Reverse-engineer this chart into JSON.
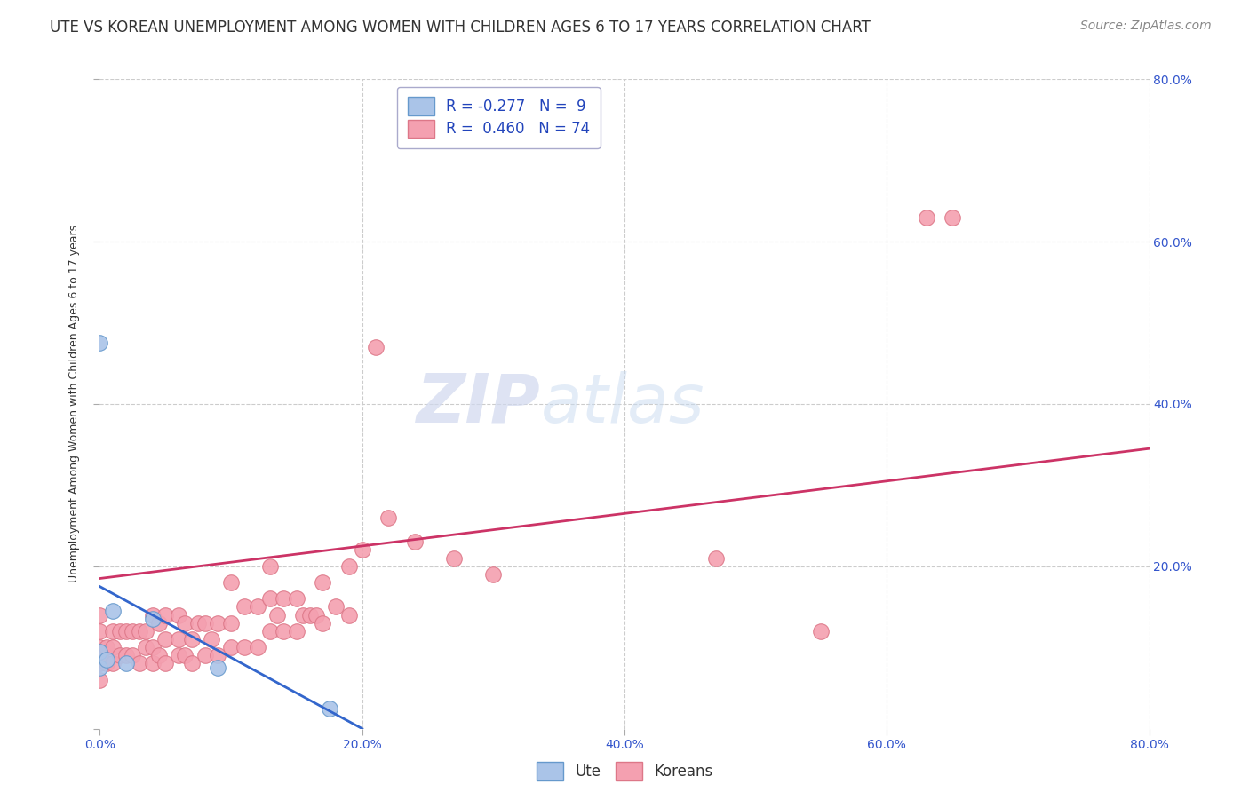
{
  "title": "UTE VS KOREAN UNEMPLOYMENT AMONG WOMEN WITH CHILDREN AGES 6 TO 17 YEARS CORRELATION CHART",
  "source": "Source: ZipAtlas.com",
  "ylabel": "Unemployment Among Women with Children Ages 6 to 17 years",
  "xlim": [
    0.0,
    0.8
  ],
  "ylim": [
    0.0,
    0.8
  ],
  "xticks": [
    0.0,
    0.2,
    0.4,
    0.6,
    0.8
  ],
  "yticks": [
    0.0,
    0.2,
    0.4,
    0.6,
    0.8
  ],
  "xtick_labels": [
    "0.0%",
    "20.0%",
    "40.0%",
    "60.0%",
    "80.0%"
  ],
  "ytick_labels_right": [
    "20.0%",
    "40.0%",
    "60.0%",
    "80.0%"
  ],
  "background_color": "#ffffff",
  "grid_color": "#cccccc",
  "watermark_zip": "ZIP",
  "watermark_atlas": "atlas",
  "legend": {
    "ute_label": "Ute",
    "korean_label": "Koreans",
    "ute_R": "R = -0.277",
    "korean_R": "R =  0.460",
    "ute_N": "N =  9",
    "korean_N": "N = 74"
  },
  "ute_color": "#aac4e8",
  "ute_edge_color": "#6699cc",
  "ute_line_color": "#3366cc",
  "korean_color": "#f4a0b0",
  "korean_edge_color": "#dd7788",
  "korean_line_color": "#cc3366",
  "ute_scatter_x": [
    0.0,
    0.0,
    0.0,
    0.005,
    0.01,
    0.02,
    0.04,
    0.09,
    0.175
  ],
  "ute_scatter_y": [
    0.475,
    0.095,
    0.075,
    0.085,
    0.145,
    0.08,
    0.135,
    0.075,
    0.025
  ],
  "korean_scatter_x": [
    0.0,
    0.0,
    0.0,
    0.0,
    0.0,
    0.005,
    0.005,
    0.01,
    0.01,
    0.01,
    0.015,
    0.015,
    0.02,
    0.02,
    0.025,
    0.025,
    0.03,
    0.03,
    0.035,
    0.035,
    0.04,
    0.04,
    0.04,
    0.045,
    0.045,
    0.05,
    0.05,
    0.05,
    0.06,
    0.06,
    0.06,
    0.065,
    0.065,
    0.07,
    0.07,
    0.075,
    0.08,
    0.08,
    0.085,
    0.09,
    0.09,
    0.1,
    0.1,
    0.1,
    0.11,
    0.11,
    0.12,
    0.12,
    0.13,
    0.13,
    0.13,
    0.135,
    0.14,
    0.14,
    0.15,
    0.15,
    0.155,
    0.16,
    0.165,
    0.17,
    0.17,
    0.18,
    0.19,
    0.19,
    0.2,
    0.21,
    0.22,
    0.24,
    0.27,
    0.3,
    0.47,
    0.55,
    0.63,
    0.65
  ],
  "korean_scatter_y": [
    0.06,
    0.08,
    0.1,
    0.12,
    0.14,
    0.08,
    0.1,
    0.08,
    0.1,
    0.12,
    0.09,
    0.12,
    0.09,
    0.12,
    0.09,
    0.12,
    0.08,
    0.12,
    0.1,
    0.12,
    0.08,
    0.1,
    0.14,
    0.09,
    0.13,
    0.08,
    0.11,
    0.14,
    0.09,
    0.11,
    0.14,
    0.09,
    0.13,
    0.08,
    0.11,
    0.13,
    0.09,
    0.13,
    0.11,
    0.09,
    0.13,
    0.1,
    0.13,
    0.18,
    0.1,
    0.15,
    0.1,
    0.15,
    0.12,
    0.16,
    0.2,
    0.14,
    0.12,
    0.16,
    0.12,
    0.16,
    0.14,
    0.14,
    0.14,
    0.13,
    0.18,
    0.15,
    0.14,
    0.2,
    0.22,
    0.47,
    0.26,
    0.23,
    0.21,
    0.19,
    0.21,
    0.12,
    0.63,
    0.63
  ],
  "ute_trend_x": [
    0.0,
    0.2
  ],
  "ute_trend_y": [
    0.175,
    0.0
  ],
  "korean_trend_x": [
    0.0,
    0.8
  ],
  "korean_trend_y": [
    0.185,
    0.345
  ],
  "title_fontsize": 12,
  "axis_fontsize": 9,
  "tick_fontsize": 10,
  "legend_fontsize": 12,
  "watermark_fontsize_zip": 55,
  "watermark_fontsize_atlas": 55,
  "source_fontsize": 10
}
